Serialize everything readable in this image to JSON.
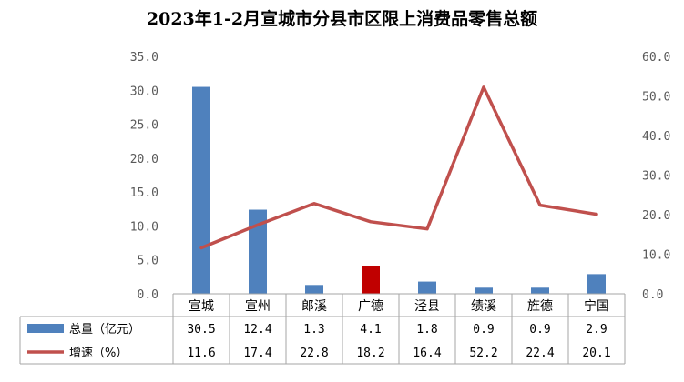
{
  "chart_data": {
    "type": "bar",
    "title": "2023年1-2月宣城市分县市区限上消费品零售总额",
    "categories": [
      "宣城",
      "宣州",
      "郎溪",
      "广德",
      "泾县",
      "绩溪",
      "旌德",
      "宁国"
    ],
    "series": [
      {
        "name": "总量（亿元）",
        "type": "bar",
        "axis": "left",
        "values": [
          30.5,
          12.4,
          1.3,
          4.1,
          1.8,
          0.9,
          0.9,
          2.9
        ],
        "color": "#4f81bd",
        "highlight_index": 3,
        "highlight_color": "#c00000"
      },
      {
        "name": "增速（%）",
        "type": "line",
        "axis": "right",
        "values": [
          11.6,
          17.4,
          22.8,
          18.2,
          16.4,
          52.2,
          22.4,
          20.1
        ],
        "color": "#c0504d"
      }
    ],
    "y_left": {
      "ylim": [
        0,
        35
      ],
      "ticks": [
        "0.0",
        "5.0",
        "10.0",
        "15.0",
        "20.0",
        "25.0",
        "30.0",
        "35.0"
      ]
    },
    "y_right": {
      "ylim": [
        0,
        60
      ],
      "ticks": [
        "0.0",
        "10.0",
        "20.0",
        "30.0",
        "40.0",
        "50.0",
        "60.0"
      ]
    },
    "grid": false,
    "legend": "data-table"
  }
}
